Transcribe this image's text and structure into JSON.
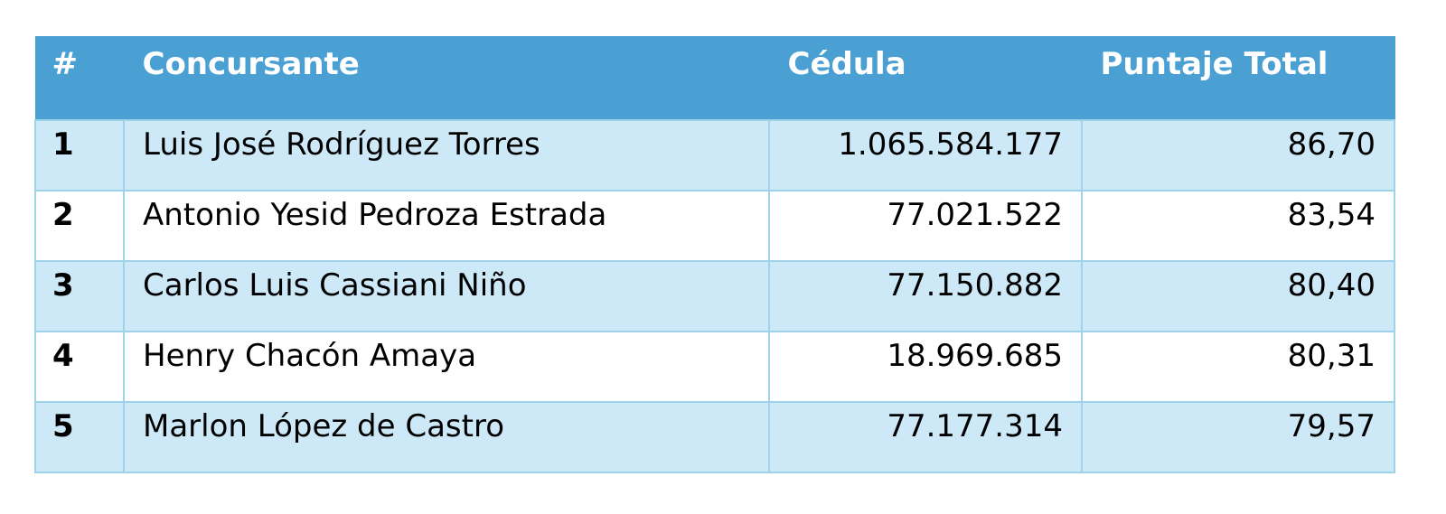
{
  "table": {
    "headers": {
      "number": "#",
      "contestant": "Concursante",
      "id": "Cédula",
      "total": "Puntaje Total"
    },
    "rows": [
      {
        "number": "1",
        "contestant": "Luis José Rodríguez Torres",
        "id": "1.065.584.177",
        "total": "86,70"
      },
      {
        "number": "2",
        "contestant": "Antonio Yesid Pedroza Estrada",
        "id": "77.021.522",
        "total": "83,54"
      },
      {
        "number": "3",
        "contestant": "Carlos Luis Cassiani Niño",
        "id": "77.150.882",
        "total": "80,40"
      },
      {
        "number": "4",
        "contestant": "Henry Chacón Amaya",
        "id": "18.969.685",
        "total": "80,31"
      },
      {
        "number": "5",
        "contestant": "Marlon López de Castro",
        "id": "77.177.314",
        "total": "79,57"
      }
    ]
  }
}
